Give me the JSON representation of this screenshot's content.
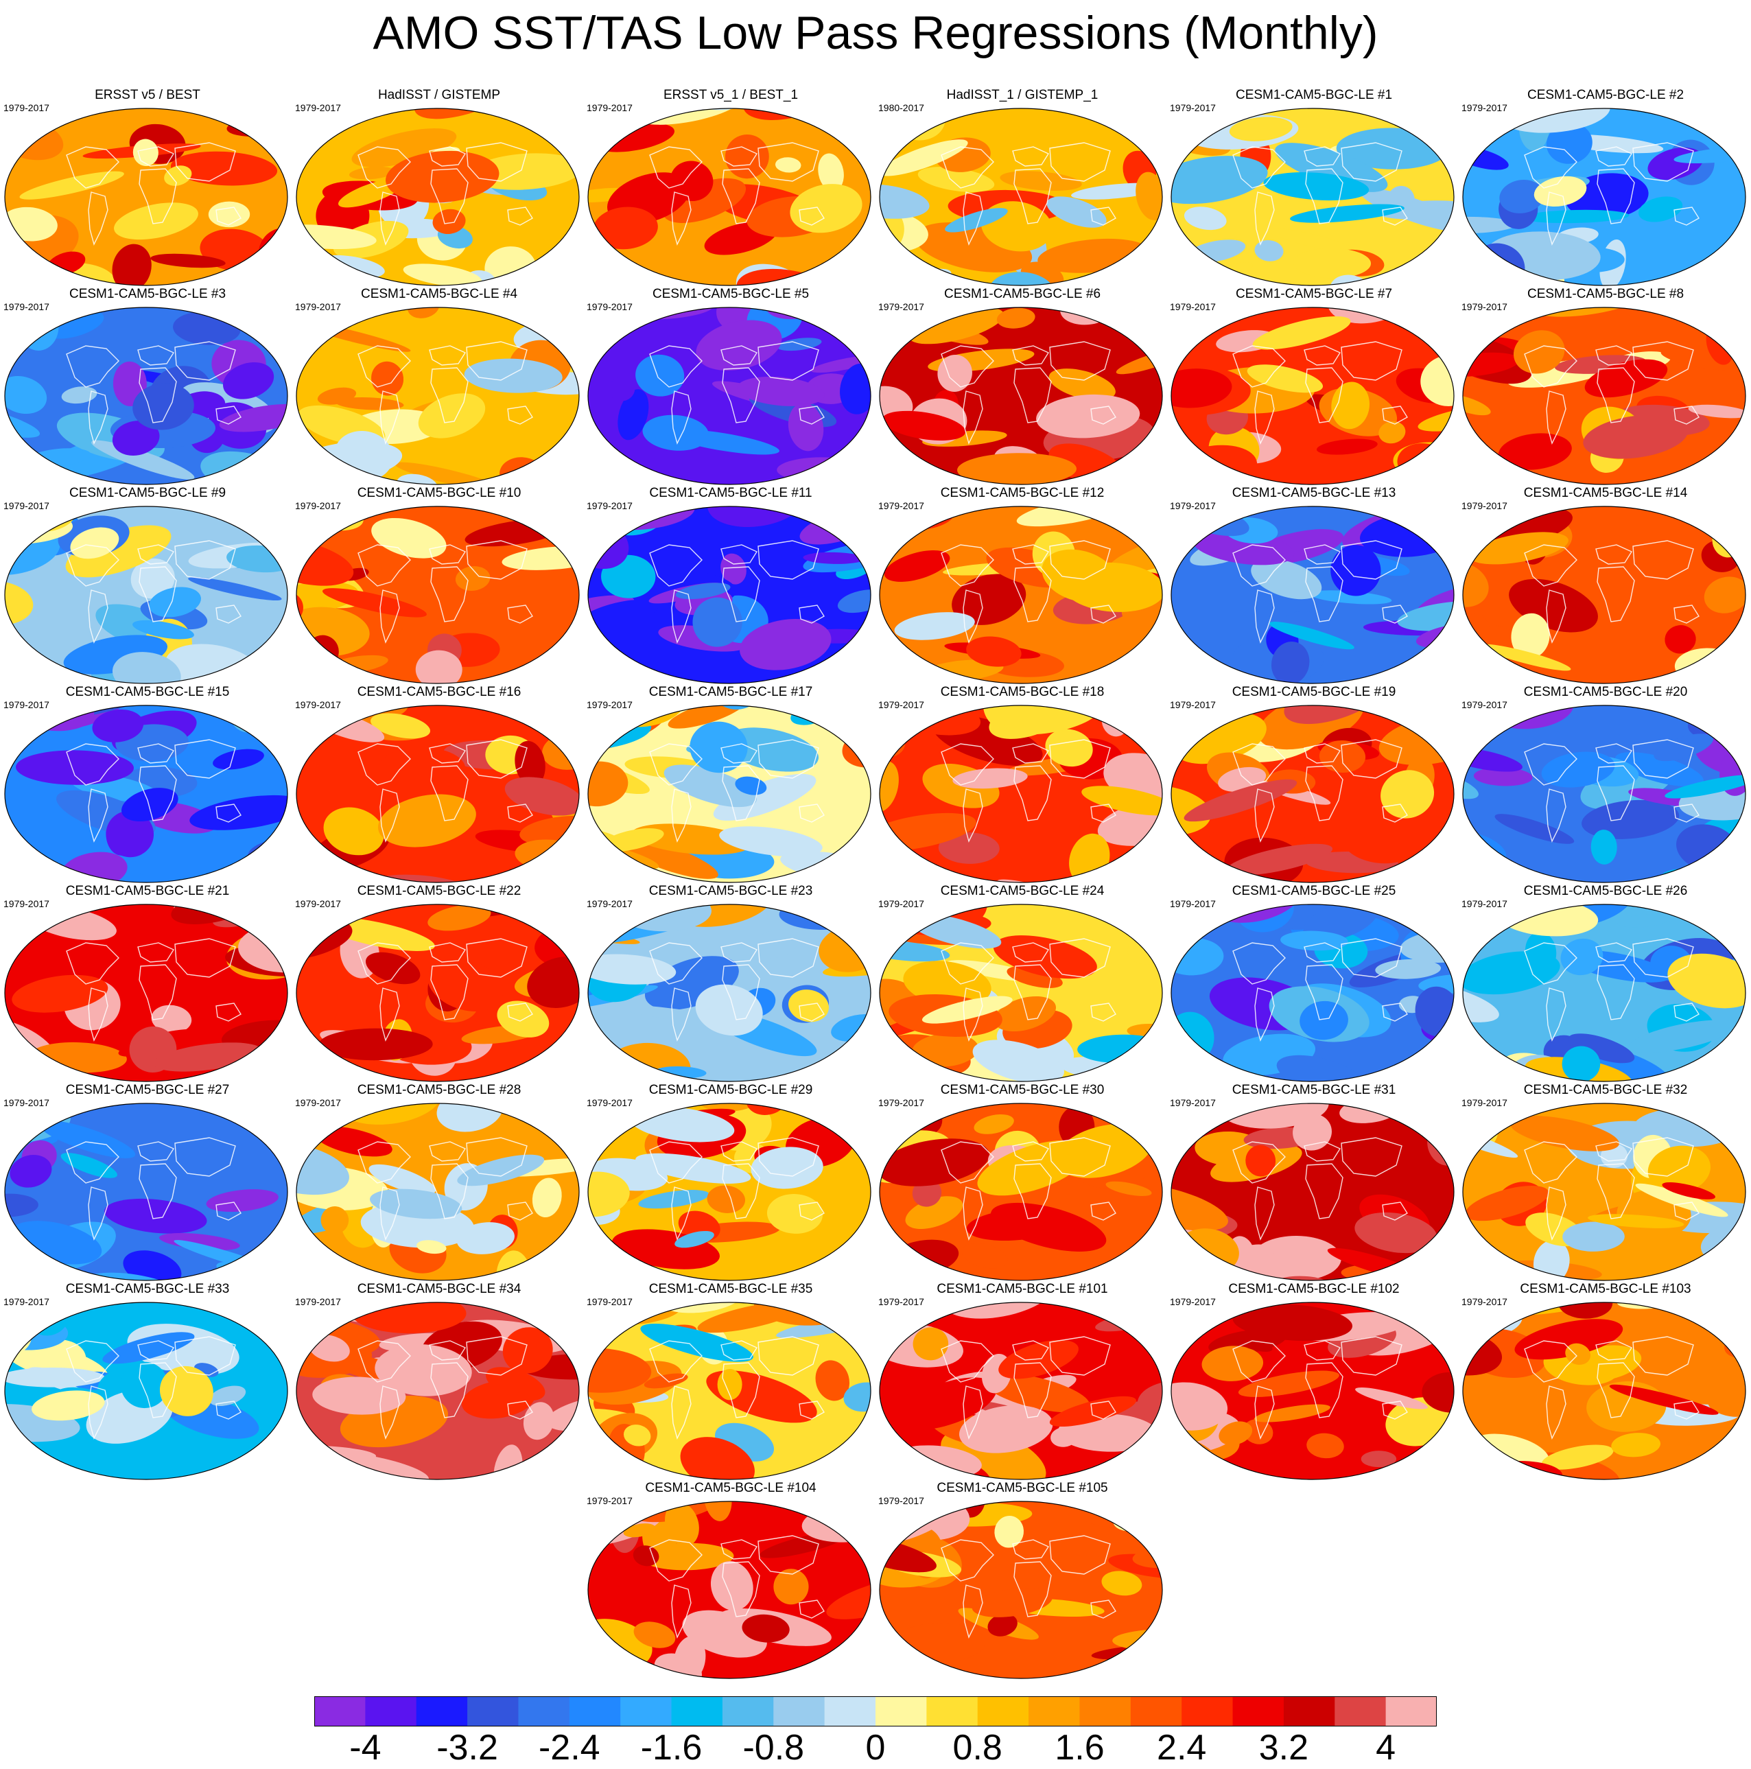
{
  "title": "AMO SST/TAS Low Pass Regressions (Monthly)",
  "chart_data": {
    "type": "heatmap",
    "projection": "global map (Robinson)",
    "color_levels": [
      -4.4,
      -4.0,
      -3.6,
      -3.2,
      -2.8,
      -2.4,
      -2.0,
      -1.6,
      -1.2,
      -0.8,
      -0.4,
      0,
      0.4,
      0.8,
      1.2,
      1.6,
      2.0,
      2.4,
      2.8,
      3.2,
      3.6,
      4.0,
      4.4
    ],
    "colors": [
      "#8a2be2",
      "#5a14f0",
      "#1a1aff",
      "#3355dd",
      "#3377ee",
      "#2288ff",
      "#33aaff",
      "#00bbf0",
      "#55bbee",
      "#99ccee",
      "#c8e4f6",
      "#fff8a0",
      "#ffe033",
      "#ffc000",
      "#ffa000",
      "#ff8000",
      "#ff5500",
      "#ff2a00",
      "#ee0000",
      "#cc0000",
      "#dd4444",
      "#f8b0b0"
    ],
    "colorbar_labels": [
      "-4",
      "-3.2",
      "-2.4",
      "-1.6",
      "-0.8",
      "0",
      "0.8",
      "1.6",
      "2.4",
      "3.2",
      "4"
    ],
    "panels": [
      {
        "title": "ERSST v5 / BEST",
        "years": "1979-2017",
        "mean": 1.5
      },
      {
        "title": "HadISST / GISTEMP",
        "years": "1979-2017",
        "mean": 1.0
      },
      {
        "title": "ERSST v5_1 / BEST_1",
        "years": "1979-2017",
        "mean": 1.5
      },
      {
        "title": "HadISST_1 / GISTEMP_1",
        "years": "1980-2017",
        "mean": 1.0
      },
      {
        "title": "CESM1-CAM5-BGC-LE #1",
        "years": "1979-2017",
        "mean": 0.4
      },
      {
        "title": "CESM1-CAM5-BGC-LE #2",
        "years": "1979-2017",
        "mean": -1.8
      },
      {
        "title": "CESM1-CAM5-BGC-LE #3",
        "years": "1979-2017",
        "mean": -2.5
      },
      {
        "title": "CESM1-CAM5-BGC-LE #4",
        "years": "1979-2017",
        "mean": 0.9
      },
      {
        "title": "CESM1-CAM5-BGC-LE #5",
        "years": "1979-2017",
        "mean": -3.8
      },
      {
        "title": "CESM1-CAM5-BGC-LE #6",
        "years": "1979-2017",
        "mean": 3.2
      },
      {
        "title": "CESM1-CAM5-BGC-LE #7",
        "years": "1979-2017",
        "mean": 2.4
      },
      {
        "title": "CESM1-CAM5-BGC-LE #8",
        "years": "1979-2017",
        "mean": 2.0
      },
      {
        "title": "CESM1-CAM5-BGC-LE #9",
        "years": "1979-2017",
        "mean": -0.8
      },
      {
        "title": "CESM1-CAM5-BGC-LE #10",
        "years": "1979-2017",
        "mean": 2.2
      },
      {
        "title": "CESM1-CAM5-BGC-LE #11",
        "years": "1979-2017",
        "mean": -3.3
      },
      {
        "title": "CESM1-CAM5-BGC-LE #12",
        "years": "1979-2017",
        "mean": 1.6
      },
      {
        "title": "CESM1-CAM5-BGC-LE #13",
        "years": "1979-2017",
        "mean": -2.6
      },
      {
        "title": "CESM1-CAM5-BGC-LE #14",
        "years": "1979-2017",
        "mean": 2.0
      },
      {
        "title": "CESM1-CAM5-BGC-LE #15",
        "years": "1979-2017",
        "mean": -2.4
      },
      {
        "title": "CESM1-CAM5-BGC-LE #16",
        "years": "1979-2017",
        "mean": 2.6
      },
      {
        "title": "CESM1-CAM5-BGC-LE #17",
        "years": "1979-2017",
        "mean": 0.0
      },
      {
        "title": "CESM1-CAM5-BGC-LE #18",
        "years": "1979-2017",
        "mean": 2.5
      },
      {
        "title": "CESM1-CAM5-BGC-LE #19",
        "years": "1979-2017",
        "mean": 2.4
      },
      {
        "title": "CESM1-CAM5-BGC-LE #20",
        "years": "1979-2017",
        "mean": -2.6
      },
      {
        "title": "CESM1-CAM5-BGC-LE #21",
        "years": "1979-2017",
        "mean": 2.9
      },
      {
        "title": "CESM1-CAM5-BGC-LE #22",
        "years": "1979-2017",
        "mean": 2.7
      },
      {
        "title": "CESM1-CAM5-BGC-LE #23",
        "years": "1979-2017",
        "mean": -0.7
      },
      {
        "title": "CESM1-CAM5-BGC-LE #24",
        "years": "1979-2017",
        "mean": 0.5
      },
      {
        "title": "CESM1-CAM5-BGC-LE #25",
        "years": "1979-2017",
        "mean": -2.5
      },
      {
        "title": "CESM1-CAM5-BGC-LE #26",
        "years": "1979-2017",
        "mean": -1.2
      },
      {
        "title": "CESM1-CAM5-BGC-LE #27",
        "years": "1979-2017",
        "mean": -2.7
      },
      {
        "title": "CESM1-CAM5-BGC-LE #28",
        "years": "1979-2017",
        "mean": 1.2
      },
      {
        "title": "CESM1-CAM5-BGC-LE #29",
        "years": "1979-2017",
        "mean": 1.0
      },
      {
        "title": "CESM1-CAM5-BGC-LE #30",
        "years": "1979-2017",
        "mean": 2.3
      },
      {
        "title": "CESM1-CAM5-BGC-LE #31",
        "years": "1979-2017",
        "mean": 3.3
      },
      {
        "title": "CESM1-CAM5-BGC-LE #32",
        "years": "1979-2017",
        "mean": 1.3
      },
      {
        "title": "CESM1-CAM5-BGC-LE #33",
        "years": "1979-2017",
        "mean": -1.3
      },
      {
        "title": "CESM1-CAM5-BGC-LE #34",
        "years": "1979-2017",
        "mean": 3.8
      },
      {
        "title": "CESM1-CAM5-BGC-LE #35",
        "years": "1979-2017",
        "mean": 0.6
      },
      {
        "title": "CESM1-CAM5-BGC-LE #101",
        "years": "1979-2017",
        "mean": 3.0
      },
      {
        "title": "CESM1-CAM5-BGC-LE #102",
        "years": "1979-2017",
        "mean": 2.8
      },
      {
        "title": "CESM1-CAM5-BGC-LE #103",
        "years": "1979-2017",
        "mean": 1.6
      },
      {
        "title": "CESM1-CAM5-BGC-LE #104",
        "years": "1979-2017",
        "mean": 2.9
      },
      {
        "title": "CESM1-CAM5-BGC-LE #105",
        "years": "1979-2017",
        "mean": 2.2
      }
    ]
  }
}
